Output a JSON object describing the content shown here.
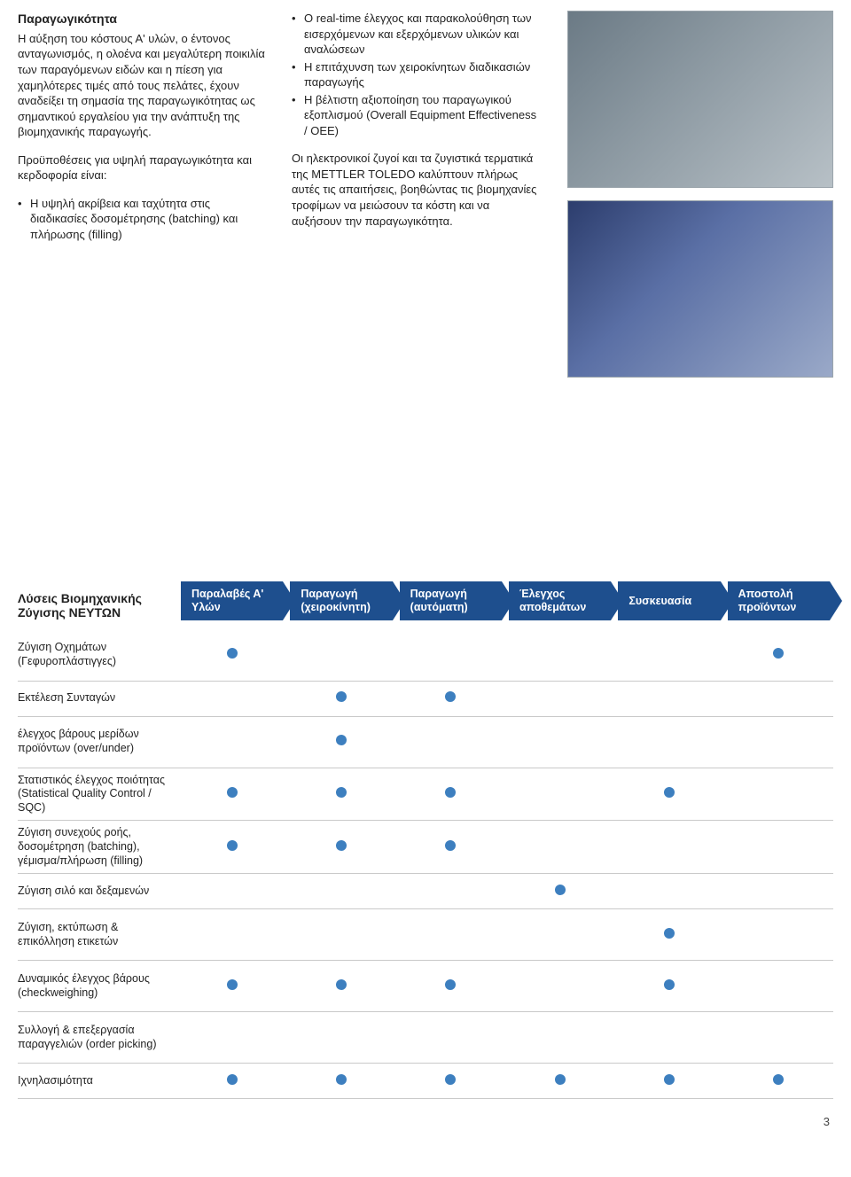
{
  "colors": {
    "step_bg": "#1e4f8e",
    "step_text": "#ffffff",
    "dot": "#3d7fbf",
    "row_border": "#c9c9c9",
    "body_text": "#222222"
  },
  "text": {
    "heading": "Παραγωγικότητα",
    "para1": "Η αύξηση του κόστους Α' υλών, ο έντονος ανταγωνισμός, η ολοένα και μεγαλύτερη ποικιλία των παραγόμενων ειδών και η πίεση για χαμηλότερες τιμές από τους πελάτες, έχουν αναδείξει τη σημασία της παραγωγικότητας ως σημαντικού εργαλείου για την ανάπτυξη της βιομηχανικής παραγωγής.",
    "para2_intro": "Προϋποθέσεις για υψηλή παραγωγικότητα και κερδοφορία είναι:",
    "bullets_left": [
      "Η υψηλή ακρίβεια και ταχύτητα στις διαδικασίες δοσομέτρησης (batching) και πλήρωσης (filling)"
    ],
    "bullets_right_top": [
      "Ο real-time έλεγχος και παρακολούθηση των εισερχόμενων και εξερχόμενων υλικών και αναλώσεων",
      "Η επιτάχυνση των χειροκίνητων διαδικασιών παραγωγής",
      "Η βέλτιστη αξιοποίηση του παραγωγικού εξοπλισμού (Overall Equipment Effectiveness / OEE)"
    ],
    "para_right2": "Οι ηλεκτρονικοί ζυγοί και τα ζυγιστικά τερματικά της METTLER TOLEDO καλύπτουν πλήρως αυτές τις απαιτήσεις, βοηθώντας τις βιομηχανίες τροφίμων να μειώσουν τα κόστη και να αυξήσουν την παραγωγικότητα."
  },
  "table": {
    "title": "Λύσεις Βιομηχανικής Ζύγισης ΝΕΥΤΩΝ",
    "columns": [
      "Παραλαβές Α' Υλών",
      "Παραγωγή (χειροκίνητη)",
      "Παραγωγή (αυτόματη)",
      "Έλεγχος αποθεμάτων",
      "Συσκευασία",
      "Αποστολή προϊόντων"
    ],
    "rows": [
      {
        "label": "Ζύγιση Οχημάτων (Γεφυροπλάστιγγες)",
        "tall": true,
        "cells": [
          1,
          0,
          0,
          0,
          0,
          1
        ]
      },
      {
        "label": "Εκτέλεση Συνταγών",
        "tall": false,
        "cells": [
          0,
          1,
          1,
          0,
          0,
          0
        ]
      },
      {
        "label": "έλεγχος βάρους μερίδων προϊόντων (over/under)",
        "tall": true,
        "cells": [
          0,
          1,
          0,
          0,
          0,
          0
        ]
      },
      {
        "label": "Στατιστικός έλεγχος ποιότητας (Statistical Quality Control / SQC)",
        "tall": true,
        "cells": [
          1,
          1,
          1,
          0,
          1,
          0
        ]
      },
      {
        "label": "Ζύγιση συνεχούς ροής, δοσομέτρηση (batching), γέμισμα/πλήρωση (filling)",
        "tall": true,
        "cells": [
          1,
          1,
          1,
          0,
          0,
          0
        ]
      },
      {
        "label": "Ζύγιση σιλό και δεξαμενών",
        "tall": false,
        "cells": [
          0,
          0,
          0,
          1,
          0,
          0
        ]
      },
      {
        "label": "Ζύγιση, εκτύπωση & επικόλληση ετικετών",
        "tall": true,
        "cells": [
          0,
          0,
          0,
          0,
          1,
          0
        ]
      },
      {
        "label": "Δυναμικός έλεγχος βάρους (checkweighing)",
        "tall": true,
        "cells": [
          1,
          1,
          1,
          0,
          1,
          0
        ]
      },
      {
        "label": "Συλλογή & επεξεργασία παραγγελιών (order picking)",
        "tall": true,
        "cells": [
          0,
          0,
          0,
          0,
          0,
          0
        ]
      },
      {
        "label": "Ιχνηλασιμότητα",
        "tall": false,
        "cells": [
          1,
          1,
          1,
          1,
          1,
          1
        ]
      }
    ]
  },
  "page_number": "3"
}
